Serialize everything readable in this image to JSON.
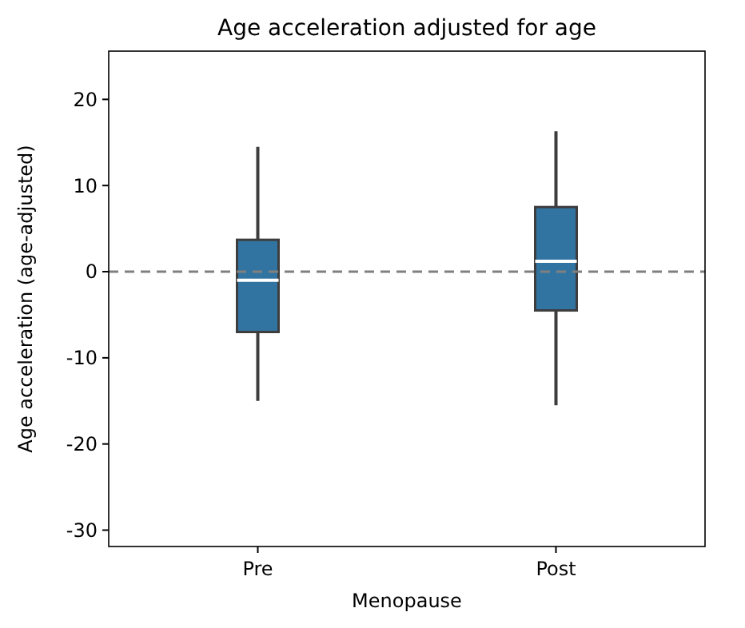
{
  "chart_data": {
    "type": "box",
    "title": "Age acceleration adjusted for age",
    "xlabel": "Menopause",
    "ylabel": "Age acceleration (age-adjusted)",
    "categories": [
      "Pre",
      "Post"
    ],
    "series": [
      {
        "color": "#3274a1",
        "boxes": [
          {
            "low": -15,
            "q1": -7,
            "median": -1,
            "q3": 3.7,
            "high": 14.5
          },
          {
            "low": -15.5,
            "q1": -4.5,
            "median": 1.2,
            "q3": 7.5,
            "high": 16.3
          }
        ]
      }
    ],
    "ylim": [
      -31.9,
      25.6
    ],
    "yticks": [
      -30,
      -20,
      -10,
      0,
      10,
      20
    ],
    "ref_lines": [
      {
        "axis": "y",
        "value": 0,
        "label": null,
        "color": "#808080",
        "line_style": "dashed"
      }
    ]
  }
}
